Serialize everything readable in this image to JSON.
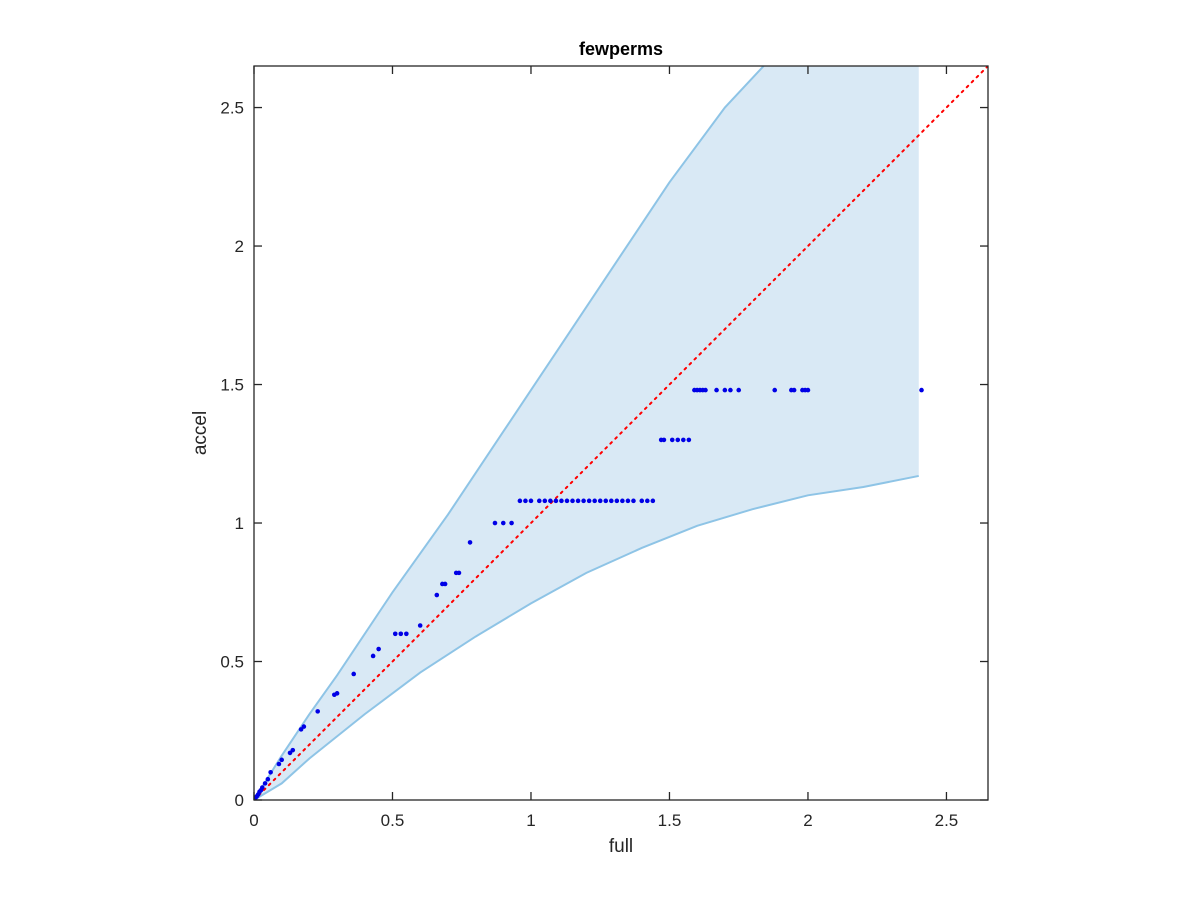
{
  "chart_data": {
    "type": "scatter",
    "title": "fewperms",
    "xlabel": "full",
    "ylabel": "accel",
    "xlim": [
      0,
      2.65
    ],
    "ylim": [
      0,
      2.65
    ],
    "xticks": [
      0,
      0.5,
      1,
      1.5,
      2,
      2.5
    ],
    "yticks": [
      0,
      0.5,
      1,
      1.5,
      2,
      2.5
    ],
    "xtick_labels": [
      "0",
      "0.5",
      "1",
      "1.5",
      "2",
      "2.5"
    ],
    "ytick_labels": [
      "0",
      "0.5",
      "1",
      "1.5",
      "2",
      "2.5"
    ],
    "grid": false,
    "colors": {
      "points": "#0000e6",
      "band_fill": "#d9e9f5",
      "band_edge": "#8ec4e6",
      "identity_line": "#ff0000",
      "axes": "#262626"
    },
    "band": {
      "upper": [
        [
          0,
          0
        ],
        [
          0.1,
          0.16
        ],
        [
          0.2,
          0.31
        ],
        [
          0.3,
          0.45
        ],
        [
          0.5,
          0.75
        ],
        [
          0.7,
          1.03
        ],
        [
          0.9,
          1.33
        ],
        [
          1.1,
          1.63
        ],
        [
          1.3,
          1.93
        ],
        [
          1.5,
          2.23
        ],
        [
          1.7,
          2.5
        ],
        [
          1.84,
          2.65
        ],
        [
          2.4,
          2.65
        ]
      ],
      "lower": [
        [
          0,
          0
        ],
        [
          0.1,
          0.06
        ],
        [
          0.2,
          0.15
        ],
        [
          0.4,
          0.31
        ],
        [
          0.6,
          0.46
        ],
        [
          0.8,
          0.59
        ],
        [
          1.0,
          0.71
        ],
        [
          1.2,
          0.82
        ],
        [
          1.4,
          0.91
        ],
        [
          1.6,
          0.99
        ],
        [
          1.8,
          1.05
        ],
        [
          2.0,
          1.1
        ],
        [
          2.2,
          1.13
        ],
        [
          2.4,
          1.17
        ]
      ]
    },
    "identity_line": {
      "from": [
        0,
        0
      ],
      "to": [
        2.65,
        2.65
      ],
      "style": "dotted"
    },
    "points": [
      [
        0.003,
        0.003
      ],
      [
        0.006,
        0.009
      ],
      [
        0.01,
        0.013
      ],
      [
        0.015,
        0.02
      ],
      [
        0.02,
        0.03
      ],
      [
        0.025,
        0.035
      ],
      [
        0.03,
        0.045
      ],
      [
        0.04,
        0.06
      ],
      [
        0.05,
        0.075
      ],
      [
        0.06,
        0.1
      ],
      [
        0.09,
        0.13
      ],
      [
        0.1,
        0.145
      ],
      [
        0.13,
        0.17
      ],
      [
        0.14,
        0.18
      ],
      [
        0.17,
        0.255
      ],
      [
        0.18,
        0.265
      ],
      [
        0.23,
        0.32
      ],
      [
        0.29,
        0.38
      ],
      [
        0.3,
        0.385
      ],
      [
        0.36,
        0.455
      ],
      [
        0.43,
        0.52
      ],
      [
        0.45,
        0.545
      ],
      [
        0.51,
        0.6
      ],
      [
        0.53,
        0.6
      ],
      [
        0.55,
        0.6
      ],
      [
        0.6,
        0.63
      ],
      [
        0.66,
        0.74
      ],
      [
        0.68,
        0.78
      ],
      [
        0.69,
        0.78
      ],
      [
        0.73,
        0.82
      ],
      [
        0.74,
        0.82
      ],
      [
        0.78,
        0.93
      ],
      [
        0.87,
        1.0
      ],
      [
        0.9,
        1.0
      ],
      [
        0.93,
        1.0
      ],
      [
        0.96,
        1.08
      ],
      [
        0.98,
        1.08
      ],
      [
        1.0,
        1.08
      ],
      [
        1.03,
        1.08
      ],
      [
        1.05,
        1.08
      ],
      [
        1.07,
        1.08
      ],
      [
        1.09,
        1.08
      ],
      [
        1.11,
        1.08
      ],
      [
        1.13,
        1.08
      ],
      [
        1.15,
        1.08
      ],
      [
        1.17,
        1.08
      ],
      [
        1.19,
        1.08
      ],
      [
        1.21,
        1.08
      ],
      [
        1.23,
        1.08
      ],
      [
        1.25,
        1.08
      ],
      [
        1.27,
        1.08
      ],
      [
        1.29,
        1.08
      ],
      [
        1.31,
        1.08
      ],
      [
        1.33,
        1.08
      ],
      [
        1.35,
        1.08
      ],
      [
        1.37,
        1.08
      ],
      [
        1.4,
        1.08
      ],
      [
        1.42,
        1.08
      ],
      [
        1.44,
        1.08
      ],
      [
        1.47,
        1.3
      ],
      [
        1.48,
        1.3
      ],
      [
        1.51,
        1.3
      ],
      [
        1.53,
        1.3
      ],
      [
        1.55,
        1.3
      ],
      [
        1.57,
        1.3
      ],
      [
        1.59,
        1.48
      ],
      [
        1.6,
        1.48
      ],
      [
        1.61,
        1.48
      ],
      [
        1.62,
        1.48
      ],
      [
        1.63,
        1.48
      ],
      [
        1.67,
        1.48
      ],
      [
        1.7,
        1.48
      ],
      [
        1.72,
        1.48
      ],
      [
        1.75,
        1.48
      ],
      [
        1.88,
        1.48
      ],
      [
        1.94,
        1.48
      ],
      [
        1.95,
        1.48
      ],
      [
        1.98,
        1.48
      ],
      [
        1.99,
        1.48
      ],
      [
        2.0,
        1.48
      ],
      [
        2.41,
        1.48
      ]
    ]
  }
}
